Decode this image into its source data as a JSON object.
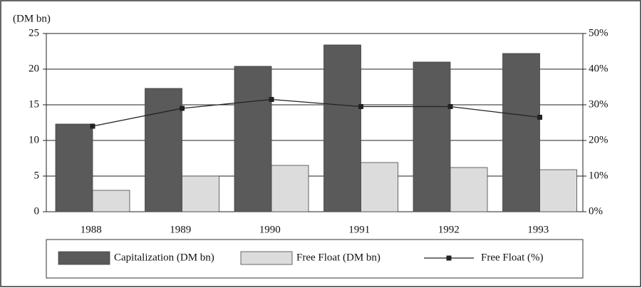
{
  "chart_data": {
    "type": "bar",
    "ylabel": "(DM bn)",
    "categories": [
      "1988",
      "1989",
      "1990",
      "1991",
      "1992",
      "1993"
    ],
    "series": [
      {
        "name": "Capitalization (DM bn)",
        "type": "bar",
        "color": "#5a5a5a",
        "values": [
          12.3,
          17.3,
          20.4,
          23.4,
          21.0,
          22.2
        ]
      },
      {
        "name": "Free Float (DM bn)",
        "type": "bar",
        "color": "#dcdcdc",
        "values": [
          3.0,
          5.0,
          6.5,
          6.9,
          6.2,
          5.9
        ]
      },
      {
        "name": "Free Float (%)",
        "type": "line",
        "axis": "y2",
        "color": "#222222",
        "values": [
          24,
          29,
          31.5,
          29.5,
          29.5,
          26.5
        ]
      }
    ],
    "ylim": [
      0,
      25
    ],
    "yticks": [
      0,
      5,
      10,
      15,
      20,
      25
    ],
    "y2lim": [
      0,
      50
    ],
    "y2ticks": [
      {
        "value": 0,
        "label": "0%"
      },
      {
        "value": 10,
        "label": "10%"
      },
      {
        "value": 20,
        "label": "20%"
      },
      {
        "value": 30,
        "label": "30%"
      },
      {
        "value": 40,
        "label": "40%"
      },
      {
        "value": 50,
        "label": "50%"
      }
    ],
    "grid": true
  }
}
